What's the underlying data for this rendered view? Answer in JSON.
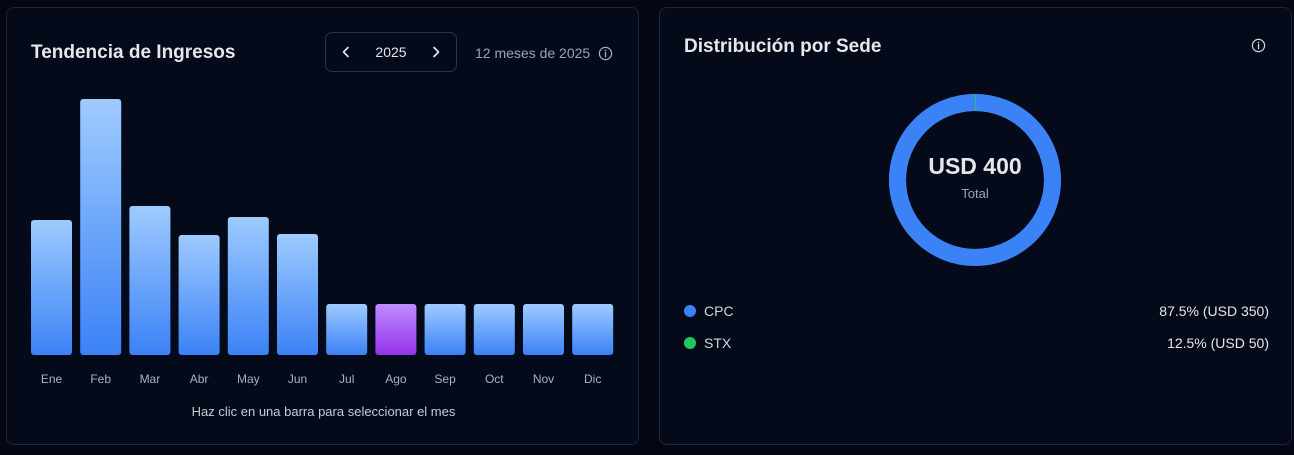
{
  "left_card": {
    "title": "Tendencia de Ingresos",
    "year": "2025",
    "period": "12 meses de 2025",
    "hint": "Haz clic en una barra para seleccionar el mes"
  },
  "right_card": {
    "title": "Distribución por Sede",
    "total_value": "USD 400",
    "total_label": "Total",
    "legend": [
      {
        "name": "CPC",
        "value": "87.5% (USD 350)",
        "color": "#3b82f6"
      },
      {
        "name": "STX",
        "value": "12.5% (USD 50)",
        "color": "#22c55e"
      }
    ]
  },
  "chart_data": {
    "type": "bar",
    "categories": [
      "Ene",
      "Feb",
      "Mar",
      "Abr",
      "May",
      "Jun",
      "Jul",
      "Ago",
      "Sep",
      "Oct",
      "Nov",
      "Dic"
    ],
    "values": [
      135,
      256,
      149,
      120,
      138,
      121,
      51,
      51,
      51,
      51,
      51,
      51
    ],
    "selected_index": 7,
    "ylim": [
      0,
      256
    ],
    "colors": {
      "bar_top": "#9ecbff",
      "bar_bottom": "#3b82f6",
      "selected_top": "#c18bff",
      "selected_bottom": "#9333ea"
    }
  },
  "donut_data": {
    "type": "pie",
    "categories": [
      "CPC",
      "STX"
    ],
    "values": [
      87.5,
      12.5
    ]
  }
}
